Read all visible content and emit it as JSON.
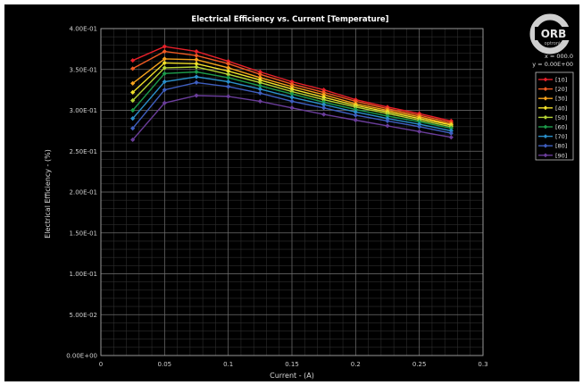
{
  "window": {
    "readout_x": "x = 000.0",
    "readout_y": "y = 0.00E+00"
  },
  "logo": {
    "text_top": "ORB",
    "text_bottom": "optronix",
    "accent_color": "#cfcfcf"
  },
  "chart_data": {
    "type": "line",
    "title": "Electrical Efficiency vs. Current [Temperature]",
    "xlabel": "Current - (A)",
    "ylabel": "Electrical Efficiency - (%)",
    "xlim": [
      0,
      0.3
    ],
    "ylim": [
      0,
      0.4
    ],
    "x_ticks": [
      0,
      0.05,
      0.1,
      0.15,
      0.2,
      0.25,
      0.3
    ],
    "x_tick_labels": [
      "0",
      "0.05",
      "0.1",
      "0.15",
      "0.2",
      "0.25",
      "0.3"
    ],
    "y_ticks": [
      0,
      0.05,
      0.1,
      0.15,
      0.2,
      0.25,
      0.3,
      0.35,
      0.4
    ],
    "y_tick_labels": [
      "0.00E+00",
      "5.00E-02",
      "1.00E-01",
      "1.50E-01",
      "2.00E-01",
      "2.50E-01",
      "3.00E-01",
      "3.50E-01",
      "4.00E-01"
    ],
    "grid": true,
    "legend_position": "right",
    "x": [
      0.025,
      0.05,
      0.075,
      0.1,
      0.125,
      0.15,
      0.175,
      0.2,
      0.225,
      0.25,
      0.275
    ],
    "series": [
      {
        "name": "[10]",
        "color": "#e8202a",
        "values": [
          0.361,
          0.378,
          0.372,
          0.36,
          0.347,
          0.335,
          0.325,
          0.313,
          0.304,
          0.296,
          0.287
        ]
      },
      {
        "name": "[20]",
        "color": "#ef5a22",
        "values": [
          0.351,
          0.372,
          0.367,
          0.357,
          0.344,
          0.332,
          0.322,
          0.311,
          0.302,
          0.294,
          0.285
        ]
      },
      {
        "name": "[30]",
        "color": "#f5a21c",
        "values": [
          0.333,
          0.363,
          0.362,
          0.352,
          0.34,
          0.329,
          0.319,
          0.308,
          0.3,
          0.292,
          0.283
        ]
      },
      {
        "name": "[40]",
        "color": "#f2e12a",
        "values": [
          0.322,
          0.358,
          0.357,
          0.348,
          0.337,
          0.326,
          0.316,
          0.306,
          0.298,
          0.29,
          0.282
        ]
      },
      {
        "name": "[50]",
        "color": "#b4d334",
        "values": [
          0.312,
          0.352,
          0.353,
          0.344,
          0.334,
          0.323,
          0.313,
          0.304,
          0.296,
          0.288,
          0.28
        ]
      },
      {
        "name": "[60]",
        "color": "#1c9a4a",
        "values": [
          0.3,
          0.345,
          0.347,
          0.34,
          0.33,
          0.32,
          0.31,
          0.301,
          0.293,
          0.286,
          0.278
        ]
      },
      {
        "name": "[70]",
        "color": "#2a8fc9",
        "values": [
          0.29,
          0.335,
          0.341,
          0.335,
          0.326,
          0.316,
          0.307,
          0.298,
          0.29,
          0.283,
          0.275
        ]
      },
      {
        "name": "[80]",
        "color": "#3f5fc0",
        "values": [
          0.278,
          0.325,
          0.334,
          0.329,
          0.321,
          0.311,
          0.303,
          0.294,
          0.287,
          0.28,
          0.272
        ]
      },
      {
        "name": "[90]",
        "color": "#6a3d9a",
        "values": [
          0.264,
          0.309,
          0.318,
          0.317,
          0.311,
          0.303,
          0.295,
          0.288,
          0.281,
          0.274,
          0.267
        ]
      }
    ]
  }
}
